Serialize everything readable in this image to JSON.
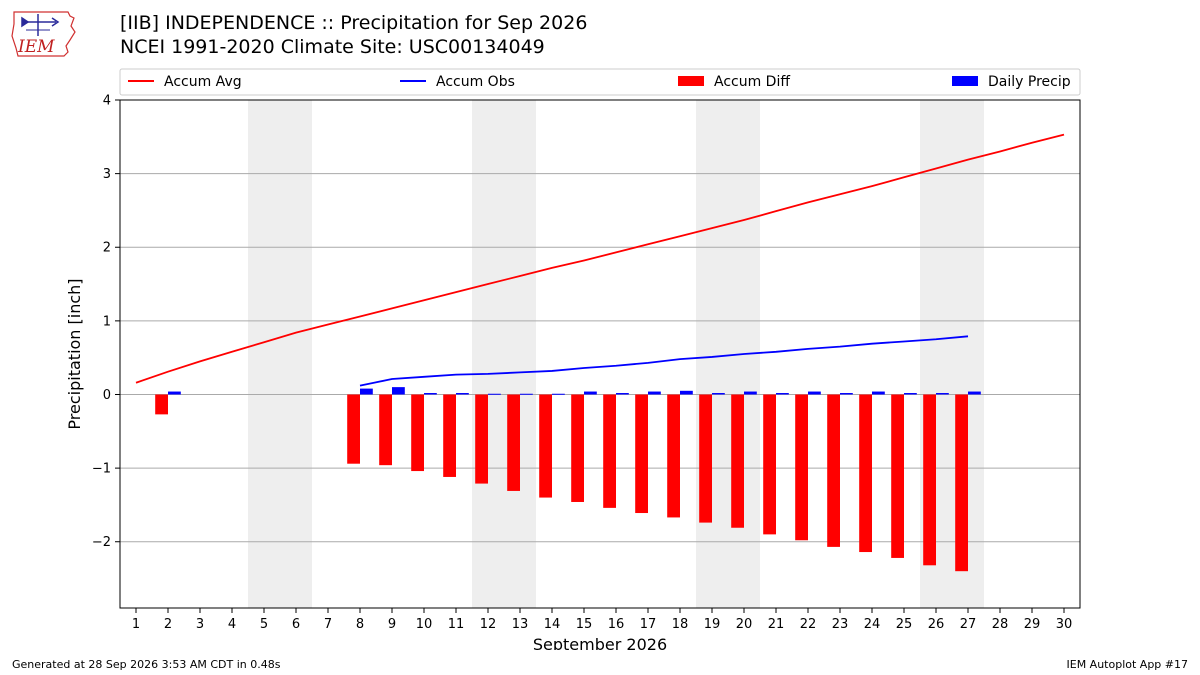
{
  "header": {
    "title_line1": "[IIB] INDEPENDENCE :: Precipitation for Sep 2026",
    "title_line2": "NCEI 1991-2020 Climate Site: USC00134049"
  },
  "logo": {
    "text": "IEM",
    "icon": "iowa-state-outline-with-weather-vane"
  },
  "footer": {
    "generated": "Generated at 28 Sep 2026 3:53 AM CDT in 0.48s",
    "app": "IEM Autoplot App #17"
  },
  "colors": {
    "avg": "#ff0000",
    "obs": "#0000ff",
    "diff": "#ff0000",
    "daily": "#0000ff",
    "weekend": "#eeeeee",
    "grid": "#aaaaaa"
  },
  "chart_data": {
    "type": "bar",
    "xlabel": "September 2026",
    "ylabel": "Precipitation [inch]",
    "xlim": [
      0.5,
      30.5
    ],
    "ylim": [
      -2.9,
      4.0
    ],
    "yticks": [
      -2,
      -1,
      0,
      1,
      2,
      3,
      4
    ],
    "ytick_labels": [
      "−2",
      "−1",
      "0",
      "1",
      "2",
      "3",
      "4"
    ],
    "xticks": [
      1,
      2,
      3,
      4,
      5,
      6,
      7,
      8,
      9,
      10,
      11,
      12,
      13,
      14,
      15,
      16,
      17,
      18,
      19,
      20,
      21,
      22,
      23,
      24,
      25,
      26,
      27,
      28,
      29,
      30
    ],
    "grid": "horizontal",
    "legend_position": "top",
    "shaded_days": [
      [
        5,
        6
      ],
      [
        12,
        13
      ],
      [
        19,
        20
      ],
      [
        26,
        27
      ]
    ],
    "legend": [
      "Accum Avg",
      "Accum Obs",
      "Accum Diff",
      "Daily Precip"
    ],
    "series": [
      {
        "name": "Accum Avg",
        "kind": "line",
        "x": [
          1,
          2,
          3,
          4,
          5,
          6,
          7,
          8,
          9,
          10,
          11,
          12,
          13,
          14,
          15,
          16,
          17,
          18,
          19,
          20,
          21,
          22,
          23,
          24,
          25,
          26,
          27,
          28,
          29,
          30
        ],
        "values": [
          0.16,
          0.31,
          0.45,
          0.58,
          0.71,
          0.84,
          0.95,
          1.06,
          1.17,
          1.28,
          1.39,
          1.5,
          1.61,
          1.72,
          1.82,
          1.93,
          2.04,
          2.15,
          2.26,
          2.37,
          2.49,
          2.61,
          2.72,
          2.83,
          2.95,
          3.07,
          3.19,
          3.3,
          3.42,
          3.53
        ]
      },
      {
        "name": "Accum Obs",
        "kind": "line",
        "x": [
          8,
          9,
          10,
          11,
          12,
          13,
          14,
          15,
          16,
          17,
          18,
          19,
          20,
          21,
          22,
          23,
          24,
          25,
          26,
          27
        ],
        "values": [
          0.12,
          0.21,
          0.24,
          0.27,
          0.28,
          0.3,
          0.32,
          0.36,
          0.39,
          0.43,
          0.48,
          0.51,
          0.55,
          0.58,
          0.62,
          0.65,
          0.69,
          0.72,
          0.75,
          0.79
        ]
      },
      {
        "name": "Accum Diff",
        "kind": "bar",
        "x": [
          2,
          8,
          9,
          10,
          11,
          12,
          13,
          14,
          15,
          16,
          17,
          18,
          19,
          20,
          21,
          22,
          23,
          24,
          25,
          26,
          27
        ],
        "values": [
          -0.27,
          -0.94,
          -0.96,
          -1.04,
          -1.12,
          -1.21,
          -1.31,
          -1.4,
          -1.46,
          -1.54,
          -1.61,
          -1.67,
          -1.74,
          -1.81,
          -1.9,
          -1.98,
          -2.07,
          -2.14,
          -2.22,
          -2.32,
          -2.4
        ]
      },
      {
        "name": "Daily Precip",
        "kind": "bar",
        "x": [
          2,
          8,
          9,
          10,
          11,
          12,
          13,
          14,
          15,
          16,
          17,
          18,
          19,
          20,
          21,
          22,
          23,
          24,
          25,
          26,
          27
        ],
        "values": [
          0.04,
          0.08,
          0.1,
          0.02,
          0.02,
          0.01,
          0.01,
          0.01,
          0.04,
          0.02,
          0.04,
          0.05,
          0.02,
          0.04,
          0.02,
          0.04,
          0.02,
          0.04,
          0.02,
          0.02,
          0.04
        ]
      }
    ]
  }
}
